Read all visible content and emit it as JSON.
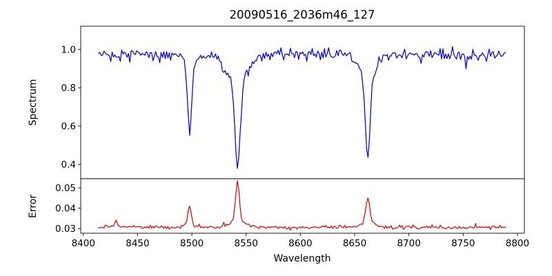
{
  "figure": {
    "title": "20090516_2036m46_127",
    "background": "#ffffff"
  },
  "chart_data": {
    "type": "line",
    "title": "20090516_2036m46_127",
    "xlabel": "Wavelength",
    "grid": false,
    "legend": "none",
    "xlim": [
      8397.6,
      8806.4
    ],
    "xticks": [
      8400,
      8450,
      8500,
      8550,
      8600,
      8650,
      8700,
      8750,
      8800
    ],
    "x_data_range": [
      8414,
      8789
    ],
    "panels": [
      {
        "name": "spectrum",
        "ylabel": "Spectrum",
        "line_color": "#0000ee",
        "ylim": [
          0.3255,
          1.1213
        ],
        "yticks": [
          0.4,
          0.6,
          0.8,
          1.0
        ],
        "tick_decimals": 1,
        "continuum_level": 0.972,
        "continuum_wobble": {
          "amplitude": 0.005,
          "period": 47
        },
        "noise_sigma": 0.0155,
        "dip_spikes": {
          "probability": 0.05,
          "max_extra_dip": 0.05
        },
        "absorption_lines": [
          {
            "center": 8498.0,
            "min_flux": 0.56,
            "core_depth": 0.332,
            "core_sigma": 1.7,
            "wing_depth": 0.08,
            "wing_sigma": 5.0
          },
          {
            "center": 8542.1,
            "min_flux": 0.375,
            "core_depth": 0.447,
            "core_sigma": 2.4,
            "wing_depth": 0.15,
            "wing_sigma": 9.0
          },
          {
            "center": 8662.1,
            "min_flux": 0.435,
            "core_depth": 0.422,
            "core_sigma": 2.1,
            "wing_depth": 0.115,
            "wing_sigma": 7.5
          }
        ],
        "n_points": 300,
        "seed": 42
      },
      {
        "name": "error",
        "ylabel": "Error",
        "line_color": "#ee0000",
        "ylim": [
          0.0277,
          0.0545
        ],
        "yticks": [
          0.03,
          0.04,
          0.05
        ],
        "tick_decimals": 2,
        "baseline_level": 0.0306,
        "noise_sigma": 0.00042,
        "up_spikes": {
          "probability": 0.035,
          "max_extra": 0.0016
        },
        "peaks": [
          {
            "center": 8430.0,
            "peak_value": 0.0335,
            "height": 0.0028,
            "sigma": 1.3,
            "shoulder_height": 0.0006,
            "shoulder_sigma": 4.0
          },
          {
            "center": 8498.0,
            "peak_value": 0.041,
            "height": 0.009,
            "sigma": 1.5,
            "shoulder_height": 0.0015,
            "shoulder_sigma": 5.0
          },
          {
            "center": 8542.1,
            "peak_value": 0.0535,
            "height": 0.0195,
            "sigma": 1.7,
            "shoulder_height": 0.0032,
            "shoulder_sigma": 7.0
          },
          {
            "center": 8662.1,
            "peak_value": 0.0455,
            "height": 0.012,
            "sigma": 1.7,
            "shoulder_height": 0.0028,
            "shoulder_sigma": 6.0
          }
        ],
        "n_points": 300,
        "seed": 1337
      }
    ]
  }
}
